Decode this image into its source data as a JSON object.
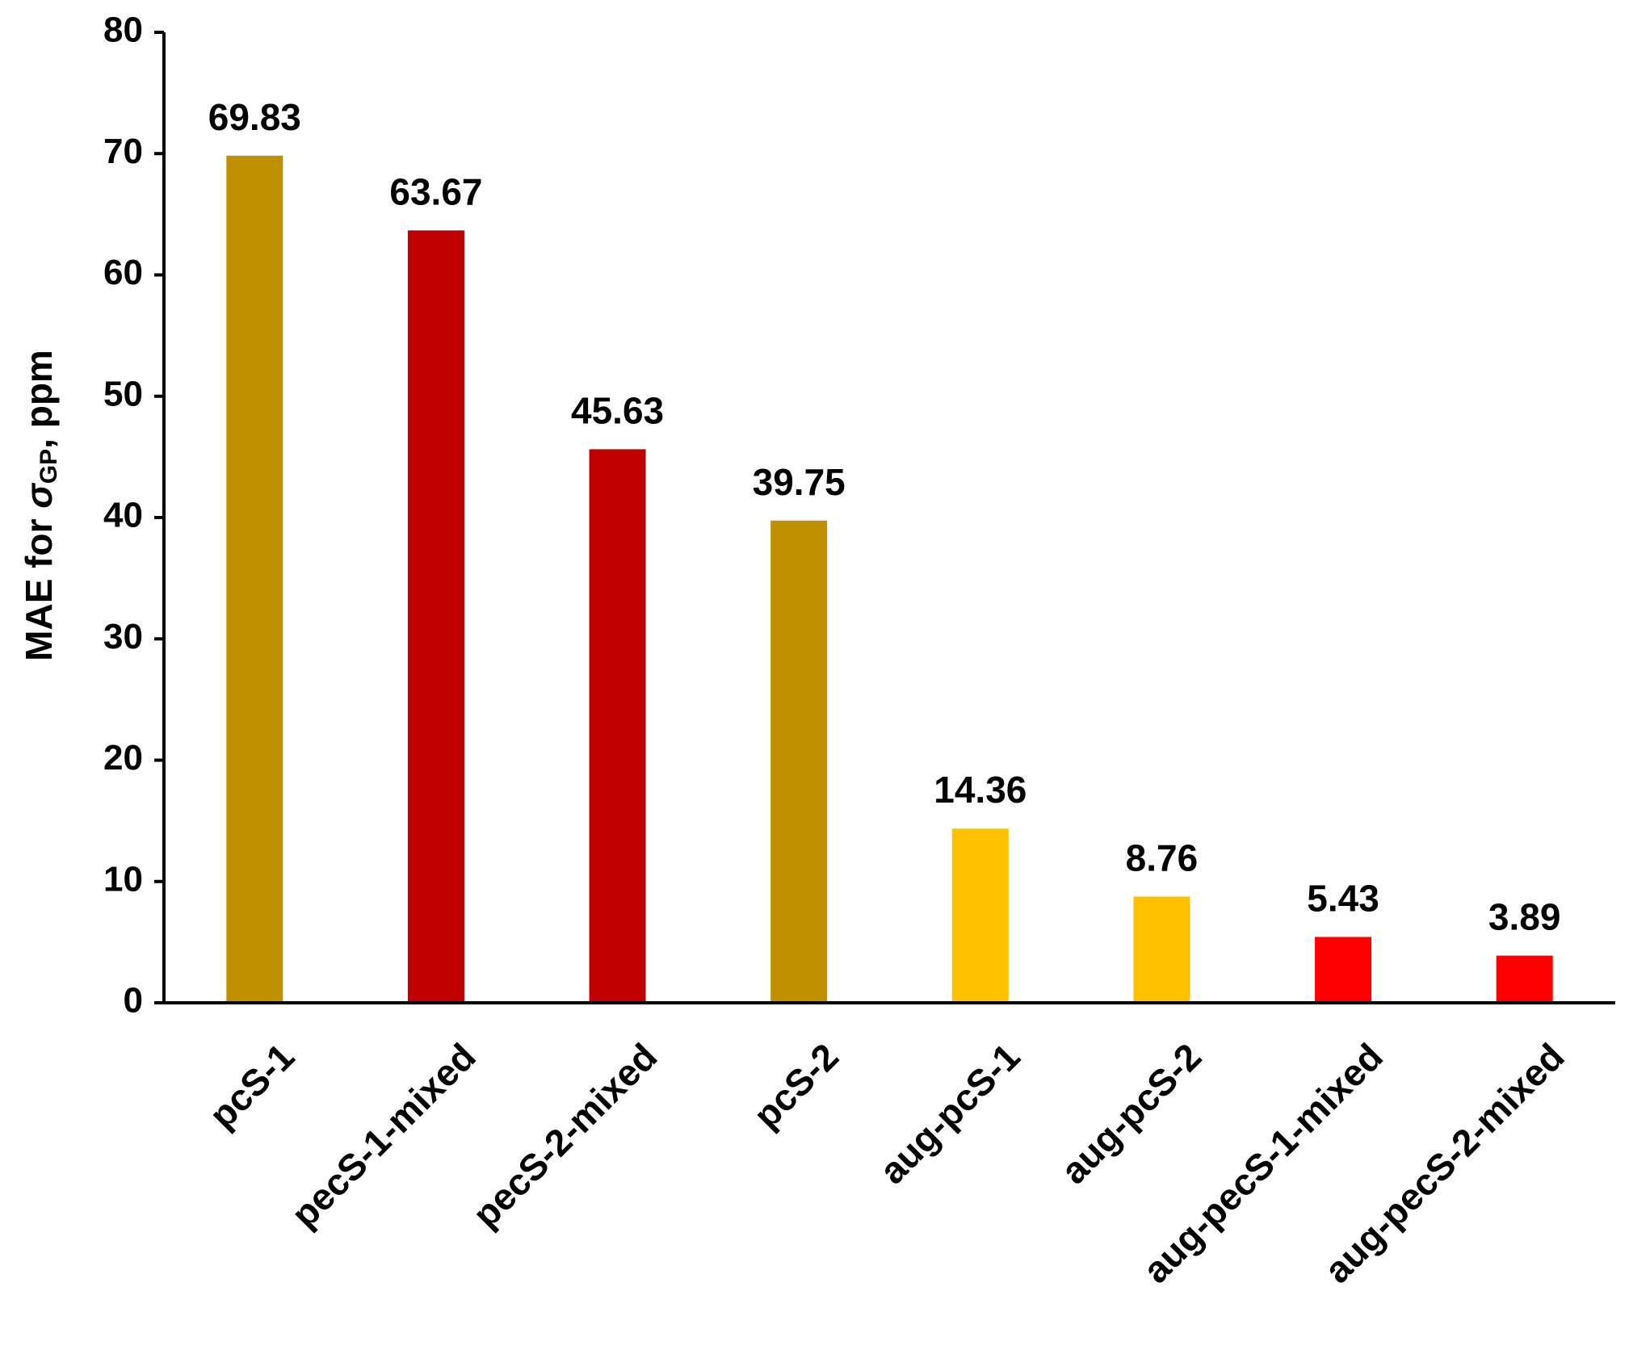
{
  "chart_data": {
    "type": "bar",
    "title": "",
    "xlabel": "",
    "ylabel": {
      "prefix": "MAE for ",
      "symbol": "σ",
      "subscript": "GP",
      "suffix": ", ppm"
    },
    "ylim": [
      0,
      80
    ],
    "yticks": [
      0,
      10,
      20,
      30,
      40,
      50,
      60,
      70,
      80
    ],
    "grid": false,
    "legend": "none",
    "categories": [
      "pcS-1",
      "pecS-1-mixed",
      "pecS-2-mixed",
      "pcS-2",
      "aug-pcS-1",
      "aug-pcS-2",
      "aug-pecS-1-mixed",
      "aug-pecS-2-mixed"
    ],
    "values": [
      69.83,
      63.67,
      45.63,
      39.75,
      14.36,
      8.76,
      5.43,
      3.89
    ],
    "data_labels": [
      "69.83",
      "63.67",
      "45.63",
      "39.75",
      "14.36",
      "8.76",
      "5.43",
      "3.89"
    ],
    "bar_colors": [
      "#BF9000",
      "#C00000",
      "#C00000",
      "#BF9000",
      "#FFC000",
      "#FFC000",
      "#FF0000",
      "#FF0000"
    ]
  }
}
